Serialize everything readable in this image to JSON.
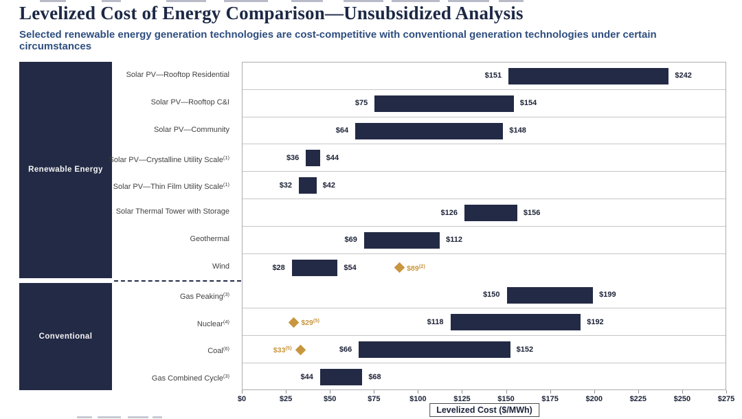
{
  "page": {
    "title": "Levelized Cost of Energy Comparison—Unsubsidized Analysis",
    "subtitle": "Selected renewable energy generation technologies are cost-competitive with conventional generation technologies under certain circumstances"
  },
  "colors": {
    "bar_navy": "#232a45",
    "marker_gold": "#c8963e",
    "title_navy": "#1c2845",
    "subtitle_blue": "#2e4e7f",
    "gridline": "#c6c6c6",
    "plot_border": "#adadad"
  },
  "chart_data": {
    "type": "bar",
    "orientation": "horizontal-range",
    "title": "Levelized Cost of Energy Comparison—Unsubsidized Analysis",
    "xlabel": "Levelized Cost ($/MWh)",
    "xlim": [
      0,
      275
    ],
    "x_tick_step": 25,
    "x_tick_labels": [
      "$0",
      "$25",
      "$50",
      "$75",
      "$100",
      "$125",
      "$150",
      "$175",
      "$200",
      "$225",
      "$250",
      "$275"
    ],
    "grid": "row-separators",
    "legend": "none",
    "groups": [
      {
        "label": "Renewable Energy",
        "rows": [
          {
            "label": "Solar PV—Rooftop Residential",
            "sup": "",
            "low": 151,
            "high": 242,
            "low_label": "$151",
            "high_label": "$242"
          },
          {
            "label": "Solar PV—Rooftop C&I",
            "sup": "",
            "low": 75,
            "high": 154,
            "low_label": "$75",
            "high_label": "$154"
          },
          {
            "label": "Solar PV—Community",
            "sup": "",
            "low": 64,
            "high": 148,
            "low_label": "$64",
            "high_label": "$148"
          },
          {
            "label": "Solar PV—Crystalline Utility Scale",
            "sup": "(1)",
            "low": 36,
            "high": 44,
            "low_label": "$36",
            "high_label": "$44"
          },
          {
            "label": "Solar PV—Thin Film Utility Scale",
            "sup": "(1)",
            "low": 32,
            "high": 42,
            "low_label": "$32",
            "high_label": "$42"
          },
          {
            "label": "Solar Thermal Tower with Storage",
            "sup": "",
            "low": 126,
            "high": 156,
            "low_label": "$126",
            "high_label": "$156"
          },
          {
            "label": "Geothermal",
            "sup": "",
            "low": 69,
            "high": 112,
            "low_label": "$69",
            "high_label": "$112"
          },
          {
            "label": "Wind",
            "sup": "",
            "low": 28,
            "high": 54,
            "low_label": "$28",
            "high_label": "$54",
            "marker": {
              "value": 89,
              "label": "$89",
              "sup": "(2)",
              "text_side": "right"
            }
          }
        ]
      },
      {
        "label": "Conventional",
        "rows": [
          {
            "label": "Gas Peaking",
            "sup": "(3)",
            "low": 150,
            "high": 199,
            "low_label": "$150",
            "high_label": "$199"
          },
          {
            "label": "Nuclear",
            "sup": "(4)",
            "low": 118,
            "high": 192,
            "low_label": "$118",
            "high_label": "$192",
            "marker": {
              "value": 29,
              "label": "$29",
              "sup": "(5)",
              "text_side": "right"
            }
          },
          {
            "label": "Coal",
            "sup": "(6)",
            "low": 66,
            "high": 152,
            "low_label": "$66",
            "high_label": "$152",
            "marker": {
              "value": 33,
              "label": "$33",
              "sup": "(5)",
              "text_side": "left"
            }
          },
          {
            "label": "Gas Combined Cycle",
            "sup": "(3)",
            "low": 44,
            "high": 68,
            "low_label": "$44",
            "high_label": "$68"
          }
        ]
      }
    ]
  }
}
